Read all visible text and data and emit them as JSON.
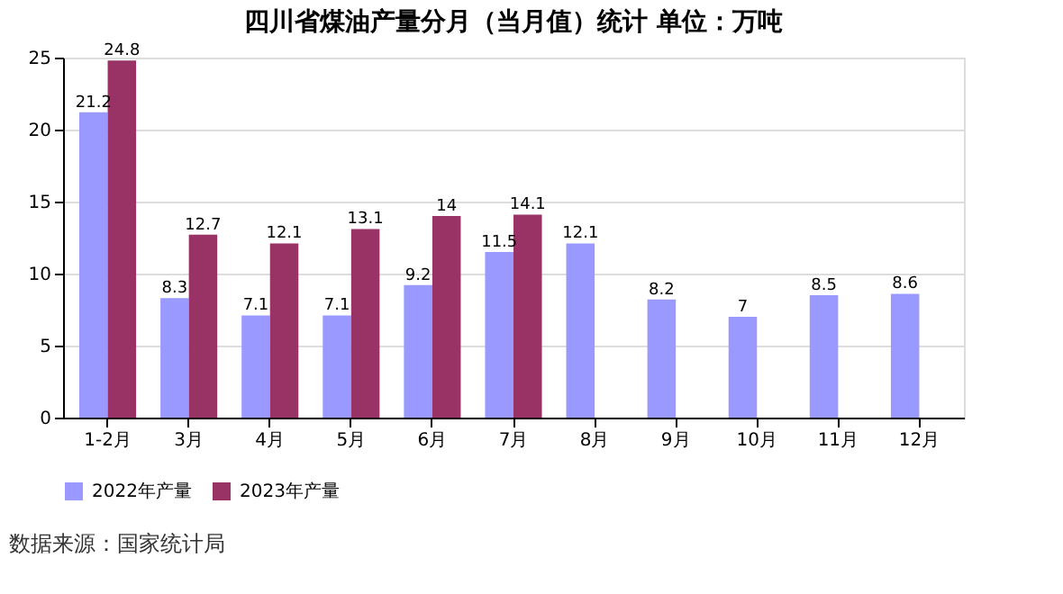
{
  "chart_data": {
    "type": "bar",
    "title": "四川省煤油产量分月（当月值）统计 单位：万吨",
    "categories": [
      "1-2月",
      "3月",
      "4月",
      "5月",
      "6月",
      "7月",
      "8月",
      "9月",
      "10月",
      "11月",
      "12月"
    ],
    "series": [
      {
        "name": "2022年产量",
        "color": "#9999ff",
        "values": [
          21.2,
          8.3,
          7.1,
          7.1,
          9.2,
          11.5,
          12.1,
          8.2,
          7,
          8.5,
          8.6
        ]
      },
      {
        "name": "2023年产量",
        "color": "#993366",
        "values": [
          24.8,
          12.7,
          12.1,
          13.1,
          14,
          14.1,
          null,
          null,
          null,
          null,
          null
        ]
      }
    ],
    "ylim": [
      0,
      25
    ],
    "yticks": [
      0,
      5,
      10,
      15,
      20,
      25
    ],
    "grid": "y",
    "legend": "bottom",
    "data_labels": true,
    "annotations": [
      "数据来源：国家统计局"
    ]
  }
}
